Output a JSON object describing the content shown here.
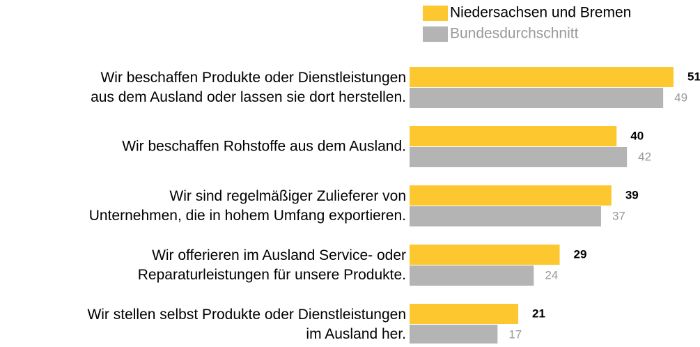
{
  "chart_data": {
    "type": "bar",
    "orientation": "horizontal",
    "categories": [
      "Wir beschaffen Produkte oder Dienstleistungen\naus dem Ausland oder lassen sie dort herstellen.",
      "Wir beschaffen Rohstoffe aus dem Ausland.",
      "Wir sind regelmäßiger Zulieferer von\nUnternehmen, die in hohem Umfang exportieren.",
      "Wir offerieren im Ausland Service- oder\nReparaturleistungen für unsere Produkte.",
      "Wir stellen selbst Produkte oder Dienstleistungen\nim Ausland her."
    ],
    "series": [
      {
        "name": "Niedersachsen und Bremen",
        "color": "#fdc82f",
        "values": [
          51,
          40,
          39,
          29,
          21
        ]
      },
      {
        "name": "Bundesdurchschnitt",
        "color": "#b4b4b4",
        "values": [
          49,
          42,
          37,
          24,
          17
        ]
      }
    ],
    "xlim": [
      0,
      51
    ],
    "legend": "top-right"
  }
}
